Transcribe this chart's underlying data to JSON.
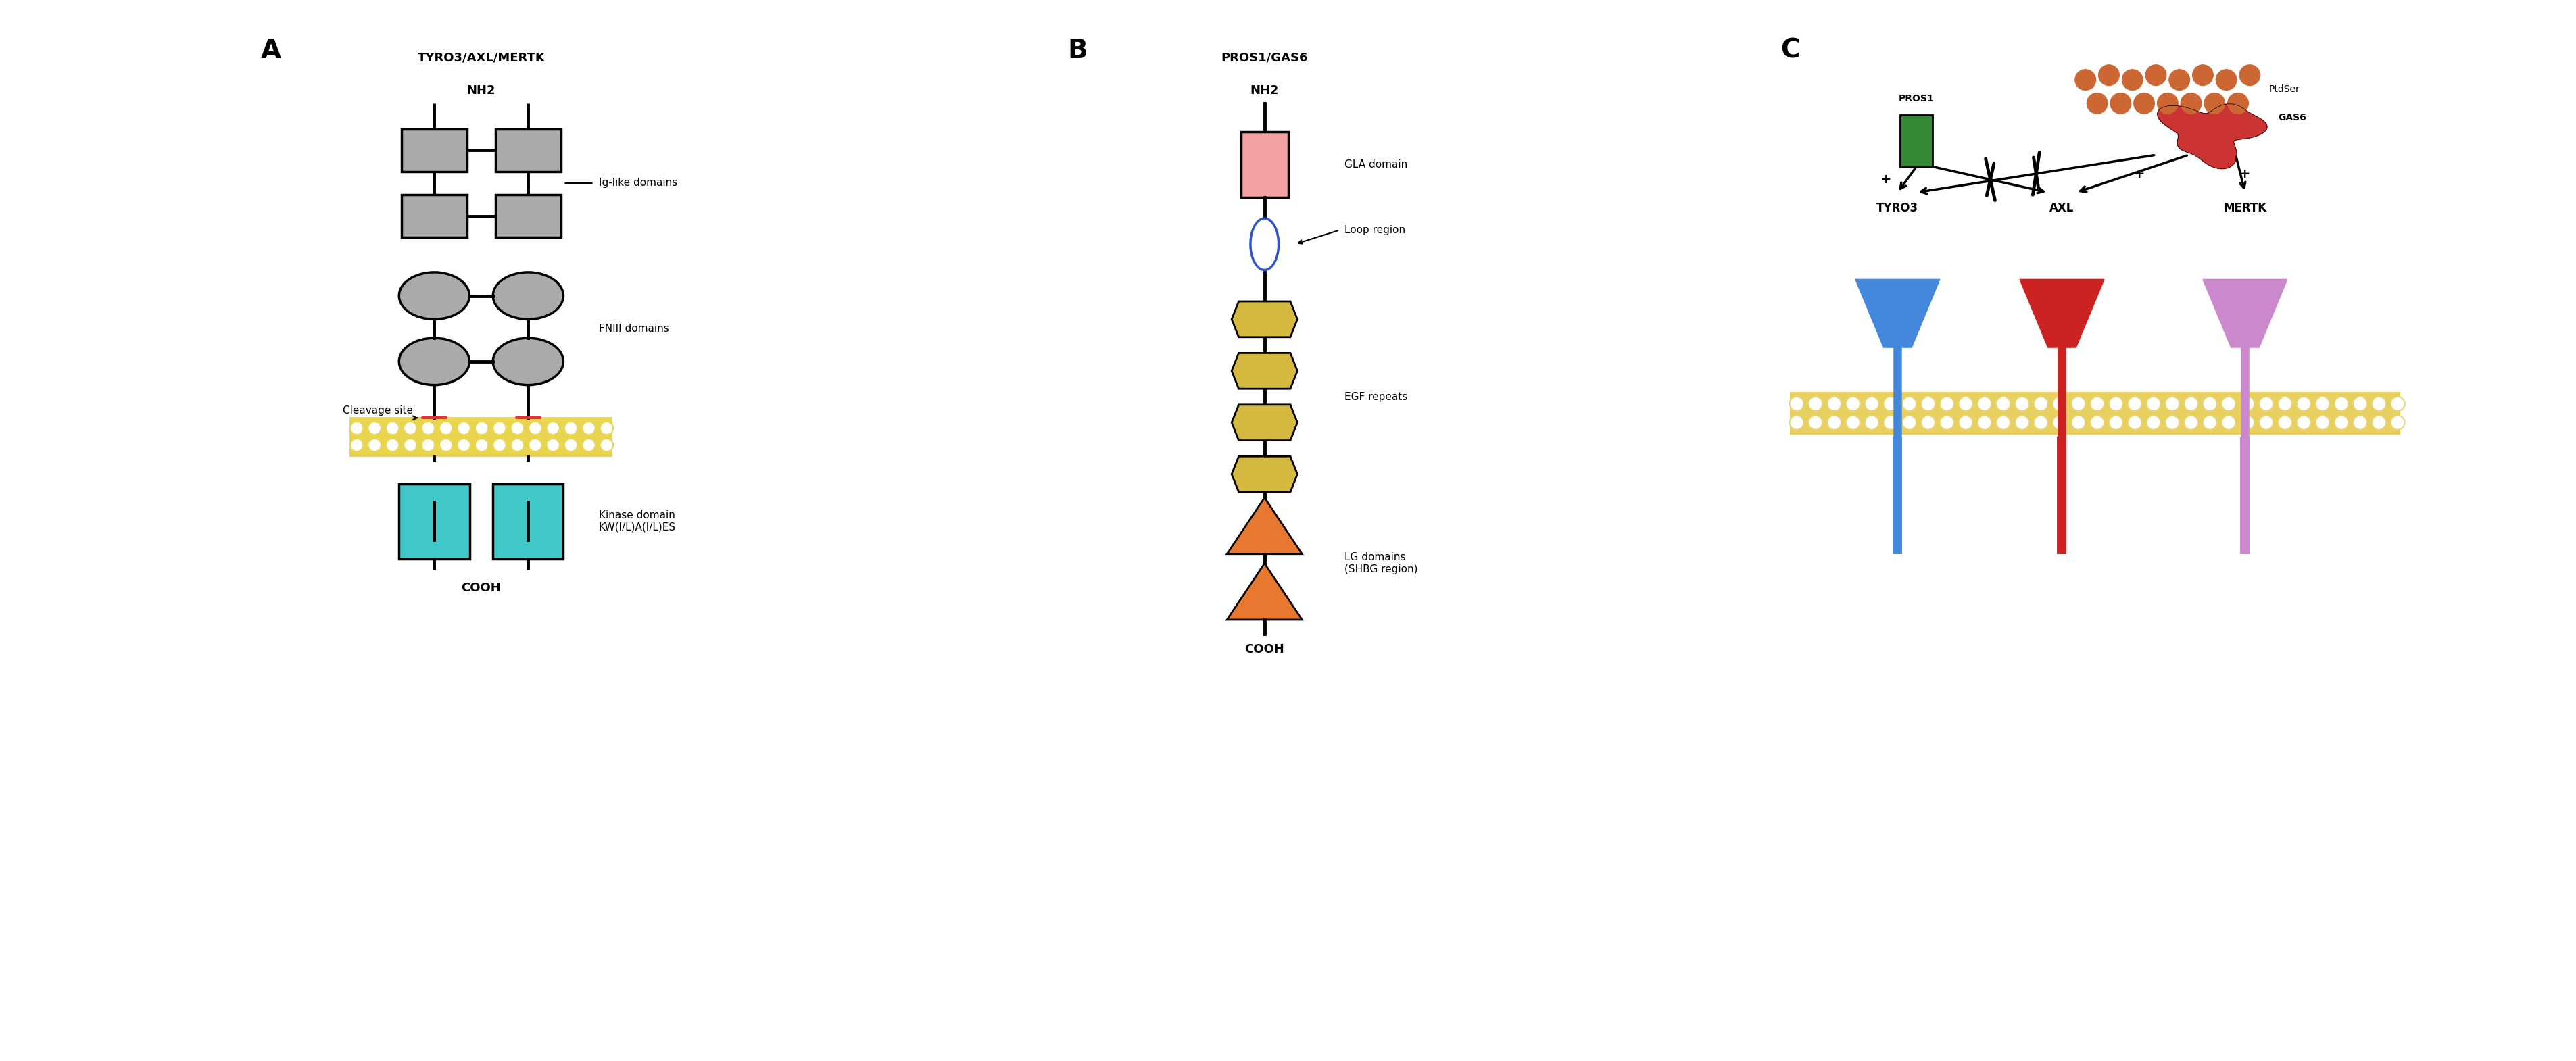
{
  "panel_A": {
    "label": "A",
    "title1": "TYRO3/AXL/MERTK",
    "title2": "NH2",
    "footer": "COOH",
    "ig_label": "Ig-like domains",
    "fn_label": "FNIII domains",
    "cleavage_label": "Cleavage site",
    "kinase_label": "Kinase domain\nKW(I/L)A(I/L)ES",
    "gray": "#aaaaaa",
    "teal": "#40c8c8",
    "yellow": "#e8d44d",
    "red": "#e83030",
    "membrane_color": "#e8d44d"
  },
  "panel_B": {
    "label": "B",
    "title1": "PROS1/GAS6",
    "title2": "NH2",
    "footer": "COOH",
    "gla_label": "GLA domain",
    "loop_label": "Loop region",
    "egf_label": "EGF repeats",
    "lg_label": "LG domains\n(SHBG region)",
    "pink": "#f4a0a0",
    "blue_loop": "#3355cc",
    "yellow_egf": "#d4b840",
    "orange_lg": "#e87830"
  },
  "panel_C": {
    "label": "C",
    "ptdser_label": "PtdSer",
    "pros1_label": "PROS1",
    "gas6_label": "GAS6",
    "tyro3_label": "TYRO3",
    "axl_label": "AXL",
    "mertk_label": "MERTK",
    "pros1_color": "#338833",
    "gas6_color": "#cc3333",
    "tyro3_color": "#4488dd",
    "axl_color": "#cc2222",
    "mertk_color": "#cc88cc",
    "ptdser_color": "#cc6633",
    "membrane_color": "#e8d060"
  },
  "bg_color": "#ffffff"
}
